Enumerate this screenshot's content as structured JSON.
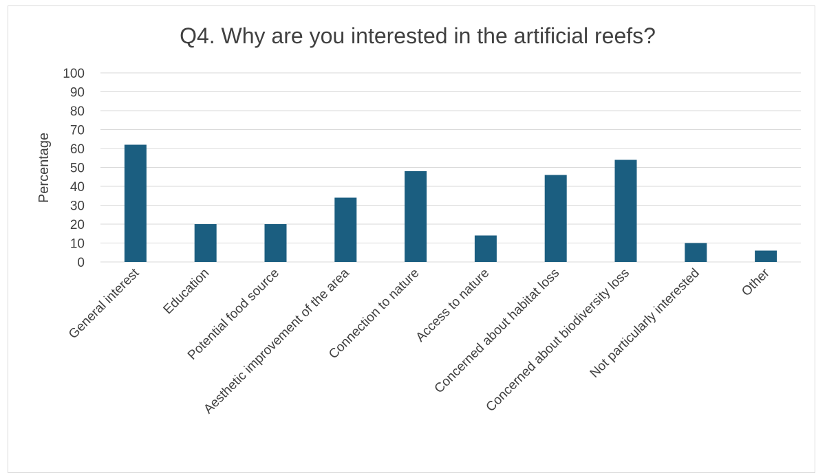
{
  "chart_data": {
    "type": "bar",
    "title": "Q4. Why are you interested in the artificial reefs?",
    "xlabel": "",
    "ylabel": "Percentage",
    "ylim": [
      0,
      100
    ],
    "yticks": [
      "0",
      "10",
      "20",
      "30",
      "40",
      "50",
      "60",
      "70",
      "80",
      "90",
      "100"
    ],
    "grid": true,
    "bar_color": "#1b5e80",
    "categories": [
      "General interest",
      "Education",
      "Potential food source",
      "Aesthetic improvement of the area",
      "Connection to nature",
      "Access to nature",
      "Concerned about habitat loss",
      "Concerned about biodiversity loss",
      "Not particularly interested",
      "Other"
    ],
    "values": [
      62,
      20,
      20,
      34,
      48,
      14,
      46,
      54,
      10,
      6
    ]
  }
}
